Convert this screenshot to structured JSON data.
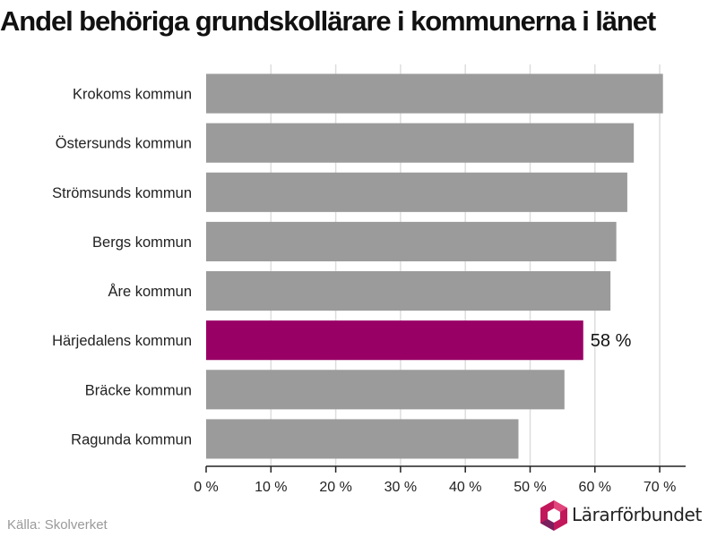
{
  "title": "Andel behöriga grundskollärare i kommunerna i länet",
  "source": "Källa: Skolverket",
  "logo": {
    "text": "Lärarförbundet",
    "icon": "hexagon-logo-icon",
    "colors": [
      "#c2185b",
      "#7b1f5e",
      "#e0457b"
    ]
  },
  "colors": {
    "bar": "#9b9b9b",
    "highlight": "#990066",
    "grid": "#dddddd",
    "axis": "#222222"
  },
  "chart_data": {
    "type": "bar",
    "orientation": "horizontal",
    "title": "Andel behöriga grundskollärare i kommunerna i länet",
    "categories": [
      "Krokoms kommun",
      "Östersunds kommun",
      "Strömsunds kommun",
      "Bergs kommun",
      "Åre kommun",
      "Härjedalens kommun",
      "Bräcke kommun",
      "Ragunda kommun"
    ],
    "values": [
      70.5,
      66,
      65,
      63.3,
      62.4,
      58.2,
      55.3,
      48.2
    ],
    "highlight_index": 5,
    "data_labels": [
      {
        "index": 5,
        "text": "58 %"
      }
    ],
    "xlim": [
      0,
      74
    ],
    "xticks": [
      0,
      10,
      20,
      30,
      40,
      50,
      60,
      70
    ],
    "xtick_labels": [
      "0 %",
      "10 %",
      "20 %",
      "30 %",
      "40 %",
      "50 %",
      "60 %",
      "70 %"
    ],
    "xlabel": "",
    "ylabel": "",
    "grid": true,
    "legend": "none"
  }
}
